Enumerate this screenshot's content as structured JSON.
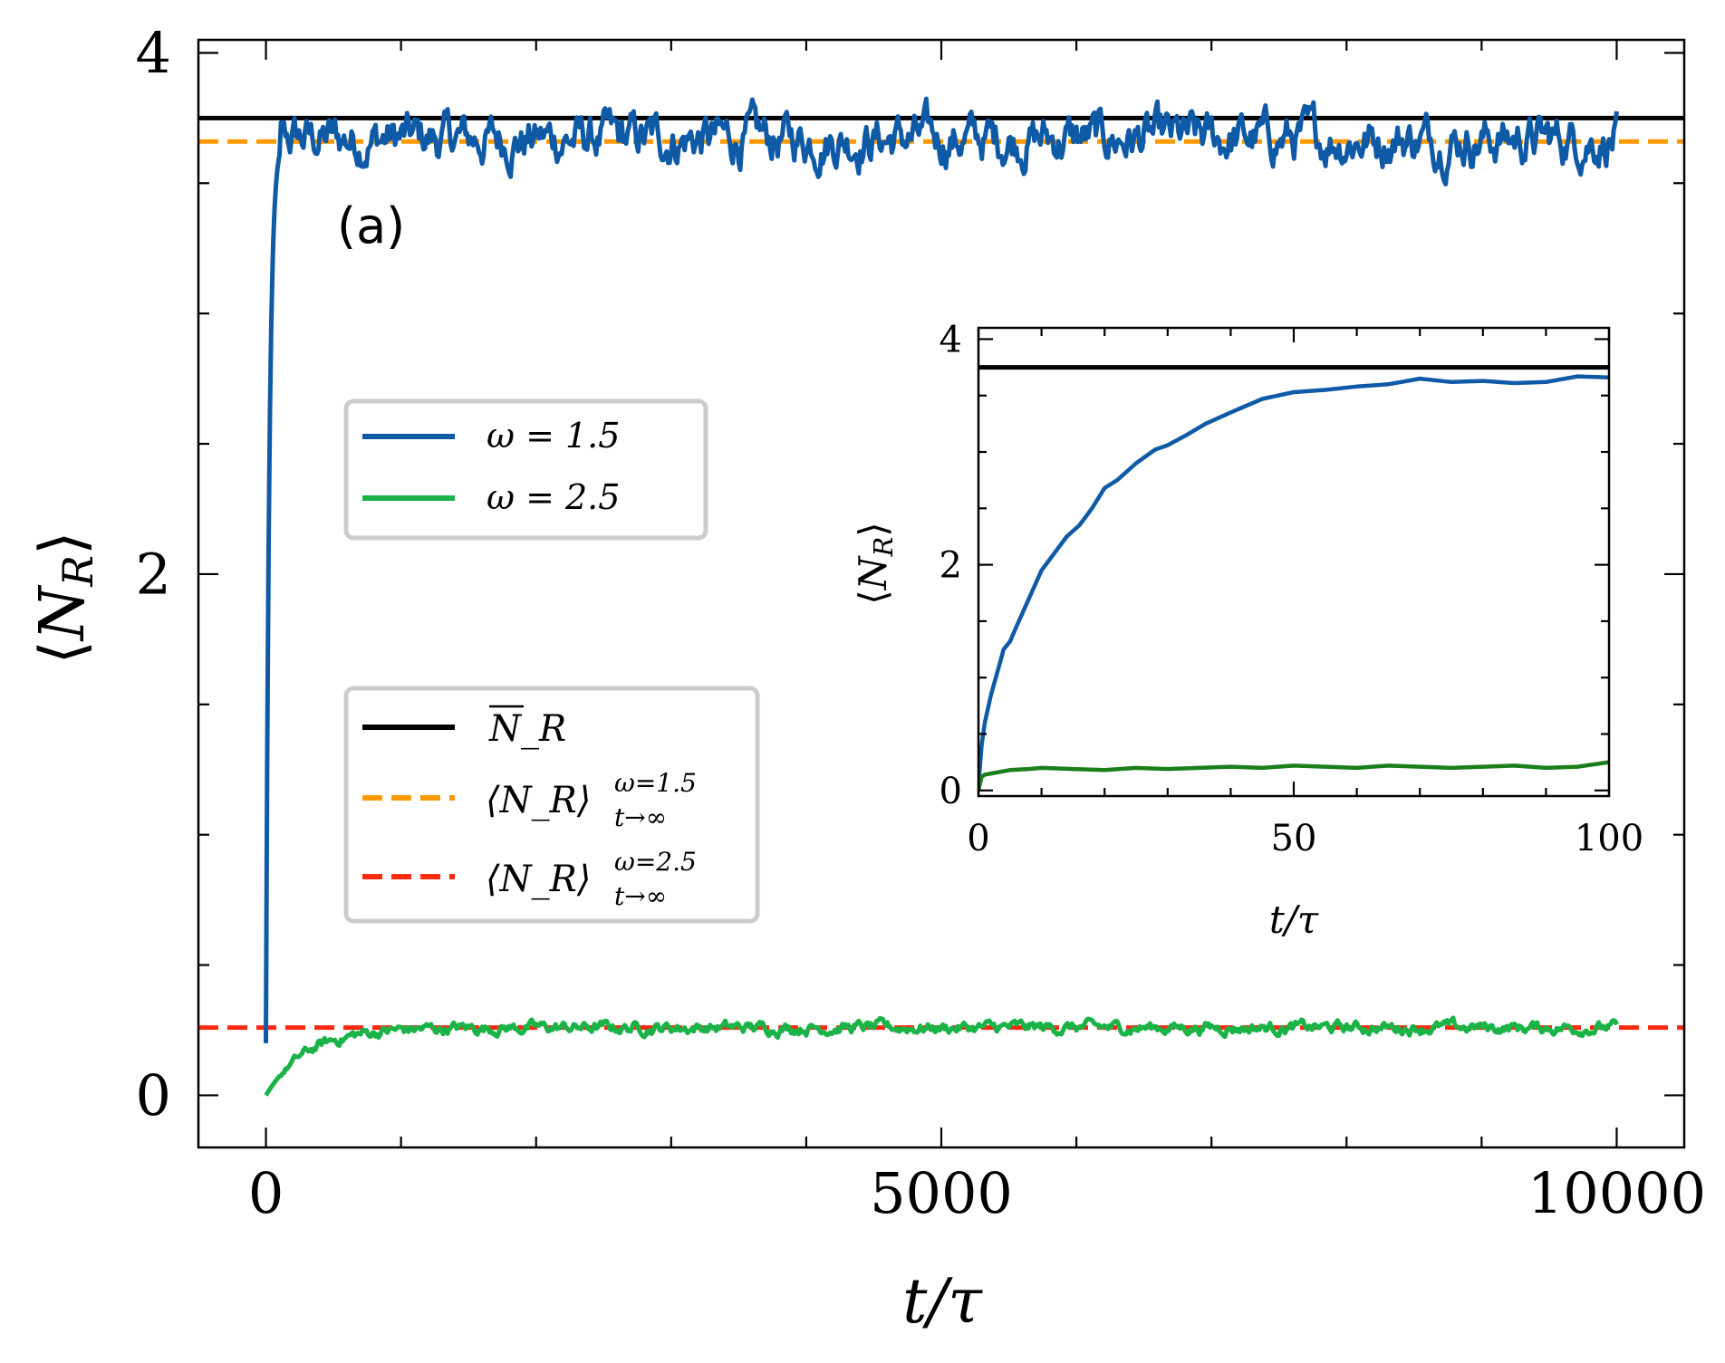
{
  "colors": {
    "omega15": "#0f5aa6",
    "omega25": "#1ab347",
    "omega25_inset": "#1a7f1a",
    "nbar": "#000000",
    "asym15": "#ff9900",
    "asym25": "#ff2a10"
  },
  "chart_data": [
    {
      "type": "line",
      "panel_label": "(a)",
      "xlabel": "t/τ",
      "ylabel": "⟨N_R⟩",
      "xlim": [
        -500,
        10500
      ],
      "ylim": [
        -0.2,
        4.05
      ],
      "xticks": [
        0,
        5000,
        10000
      ],
      "xtick_labels": [
        "0",
        "5000",
        "10000"
      ],
      "yticks": [
        0,
        2,
        4
      ],
      "ytick_labels": [
        "0",
        "2",
        "4"
      ],
      "x_minor_step": 1000,
      "y_minor_step": 0.5,
      "grid": false,
      "legend_placement": "center-left",
      "series": [
        {
          "name": "ω = 1.5",
          "kind": "noisy-relaxation",
          "color_key": "omega15",
          "x_range": [
            0,
            10000
          ],
          "start": 0.2,
          "plateau": 3.67,
          "tau": 25,
          "noise": 0.08
        },
        {
          "name": "ω = 2.5",
          "kind": "noisy-relaxation",
          "color_key": "omega25",
          "x_range": [
            0,
            10000
          ],
          "start": 0.0,
          "plateau": 0.26,
          "tau": 300,
          "noise": 0.02
        }
      ],
      "reference_lines": [
        {
          "name": "N̄_R",
          "y": 3.75,
          "style": "solid",
          "color_key": "nbar"
        },
        {
          "name": "⟨N_R⟩ ω=1.5, t→∞",
          "y": 3.66,
          "style": "dashed",
          "color_key": "asym15"
        },
        {
          "name": "⟨N_R⟩ ω=2.5, t→∞",
          "y": 0.26,
          "style": "dashed",
          "color_key": "asym25"
        }
      ]
    },
    {
      "type": "line",
      "panel": "inset",
      "xlabel": "t/τ",
      "ylabel": "⟨N_R⟩",
      "xlim": [
        0,
        100
      ],
      "ylim": [
        -0.05,
        4.1
      ],
      "xticks": [
        0,
        50,
        100
      ],
      "xtick_labels": [
        "0",
        "50",
        "100"
      ],
      "yticks": [
        0,
        2,
        4
      ],
      "ytick_labels": [
        "0",
        "2",
        "4"
      ],
      "x_minor_step": 10,
      "y_minor_step": 0.5,
      "series": [
        {
          "name": "ω = 1.5",
          "color_key": "omega15",
          "x": [
            0,
            0.5,
            1,
            2,
            3,
            4,
            5,
            6,
            8,
            10,
            12,
            14,
            16,
            18,
            20,
            22,
            25,
            28,
            30,
            33,
            36,
            40,
            45,
            50,
            55,
            60,
            65,
            70,
            75,
            80,
            85,
            90,
            95,
            100
          ],
          "y": [
            0.05,
            0.4,
            0.6,
            0.85,
            1.05,
            1.25,
            1.32,
            1.45,
            1.7,
            1.95,
            2.1,
            2.25,
            2.35,
            2.5,
            2.68,
            2.75,
            2.9,
            3.02,
            3.06,
            3.15,
            3.25,
            3.35,
            3.47,
            3.53,
            3.55,
            3.58,
            3.6,
            3.65,
            3.62,
            3.63,
            3.61,
            3.62,
            3.67,
            3.66
          ]
        },
        {
          "name": "ω = 2.5",
          "color_key": "omega25_inset",
          "x": [
            0,
            0.5,
            1,
            2,
            3,
            5,
            8,
            10,
            15,
            20,
            25,
            30,
            35,
            40,
            45,
            50,
            55,
            60,
            65,
            70,
            75,
            80,
            85,
            90,
            95,
            100
          ],
          "y": [
            0.0,
            0.12,
            0.14,
            0.15,
            0.16,
            0.18,
            0.19,
            0.2,
            0.19,
            0.18,
            0.2,
            0.19,
            0.2,
            0.21,
            0.2,
            0.22,
            0.21,
            0.2,
            0.22,
            0.21,
            0.2,
            0.21,
            0.22,
            0.2,
            0.21,
            0.25
          ]
        }
      ],
      "reference_lines": [
        {
          "name": "N̄_R",
          "y": 3.75,
          "style": "solid",
          "color_key": "nbar"
        }
      ]
    }
  ],
  "legend1": {
    "entries": [
      {
        "label": "ω = 1.5",
        "color_key": "omega15",
        "style": "solid"
      },
      {
        "label": "ω = 2.5",
        "color_key": "omega25",
        "style": "solid"
      }
    ]
  },
  "legend2": {
    "entries": [
      {
        "label_main": "N_R",
        "color_key": "nbar",
        "style": "solid"
      },
      {
        "label_main": "⟨N_R⟩",
        "sup": "ω=1.5",
        "sub": "t→∞",
        "color_key": "asym15",
        "style": "dashed"
      },
      {
        "label_main": "⟨N_R⟩",
        "sup": "ω=2.5",
        "sub": "t→∞",
        "color_key": "asym25",
        "style": "dashed"
      }
    ]
  }
}
